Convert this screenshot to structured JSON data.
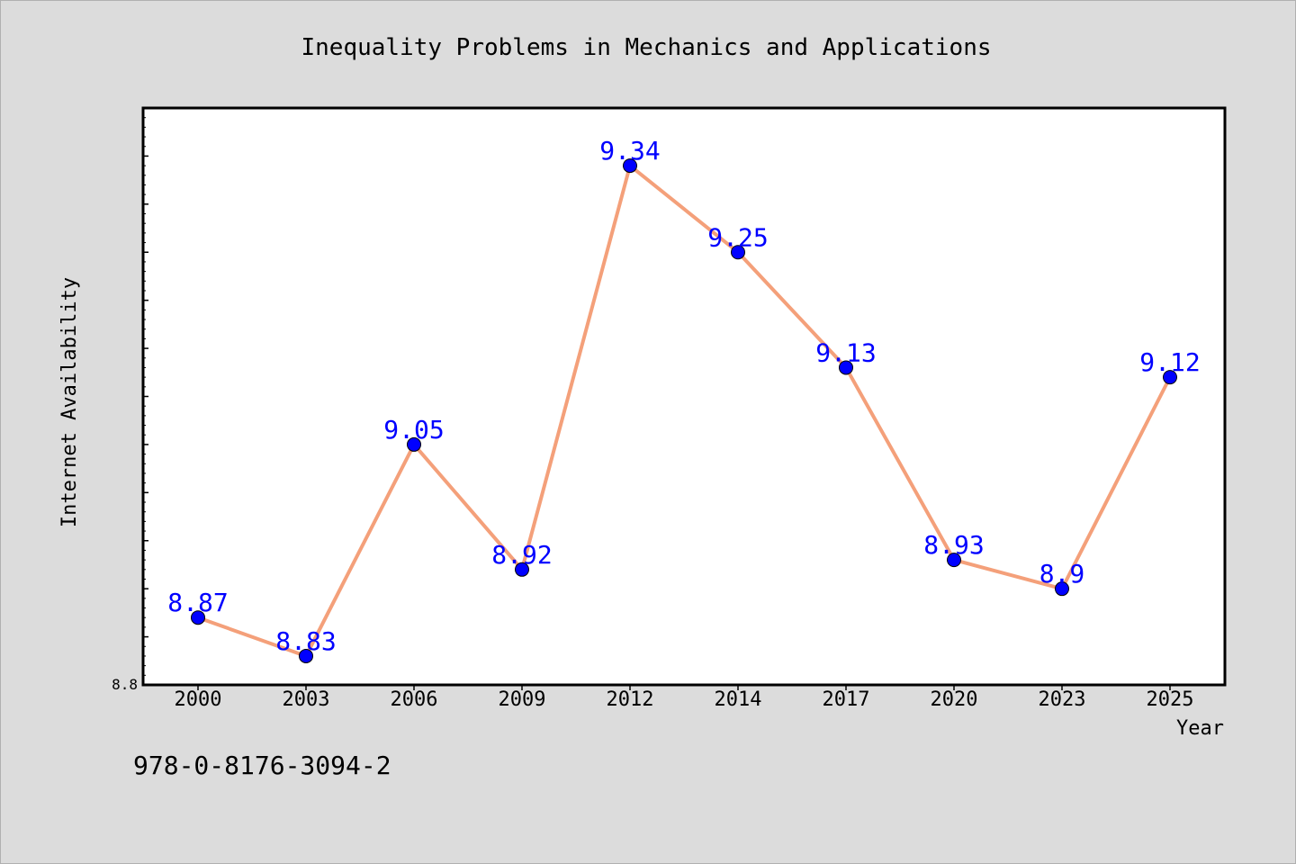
{
  "isbn_text": "978-0-8176-3094-2",
  "chart_data": {
    "type": "line",
    "title": "Inequality Problems in Mechanics and Applications",
    "xlabel": "Year",
    "ylabel": "Internet Availability",
    "categories": [
      "2000",
      "2003",
      "2006",
      "2009",
      "2012",
      "2014",
      "2017",
      "2020",
      "2023",
      "2025"
    ],
    "series": [
      {
        "values": [
          8.87,
          8.83,
          9.05,
          8.92,
          9.34,
          9.25,
          9.13,
          8.93,
          8.9,
          9.12
        ],
        "data_labels": [
          "8.87",
          "8.83",
          "9.05",
          "8.92",
          "9.34",
          "9.25",
          "9.13",
          "8.93",
          "8.9",
          "9.12"
        ]
      }
    ],
    "ylim": [
      8.8,
      9.4
    ],
    "ytick_labels": [
      "8.8"
    ],
    "grid": false,
    "legend": "none",
    "colors": {
      "line": "#f4a07a",
      "marker": "#0000ff",
      "data_label": "#0000ff",
      "plot_bg": "#ffffff",
      "page_bg": "#dcdcdc"
    }
  }
}
